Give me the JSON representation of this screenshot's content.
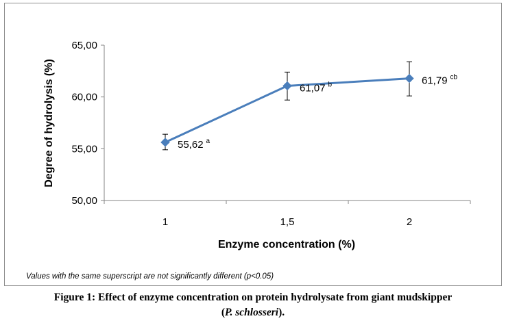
{
  "chart_data": {
    "type": "line",
    "x": [
      "1",
      "1,5",
      "2"
    ],
    "series": [
      {
        "values": [
          55.62,
          61.07,
          61.79
        ],
        "labels": [
          "55,62",
          "61,07",
          "61,79"
        ],
        "superscripts": [
          "a",
          "b",
          "cb"
        ],
        "error_low": [
          54.9,
          59.7,
          60.1
        ],
        "error_high": [
          56.4,
          62.4,
          63.4
        ],
        "color": "#4a7ebb"
      }
    ],
    "ylabel": "Degree of hydrolysis (%)",
    "xlabel": "Enzyme concentration (%)",
    "ylim": [
      50,
      65
    ],
    "yticks": [
      "50,00",
      "55,00",
      "60,00",
      "65,00"
    ],
    "ytick_values": [
      50,
      55,
      60,
      65
    ],
    "grid": false
  },
  "footnote": "Values with the same superscript are not significantly different (p<0.05)",
  "caption": {
    "line1": "Figure 1: Effect of enzyme concentration on protein hydrolysate from giant mudskipper",
    "open": "(",
    "species": "P. schlosseri",
    "close": ")."
  }
}
